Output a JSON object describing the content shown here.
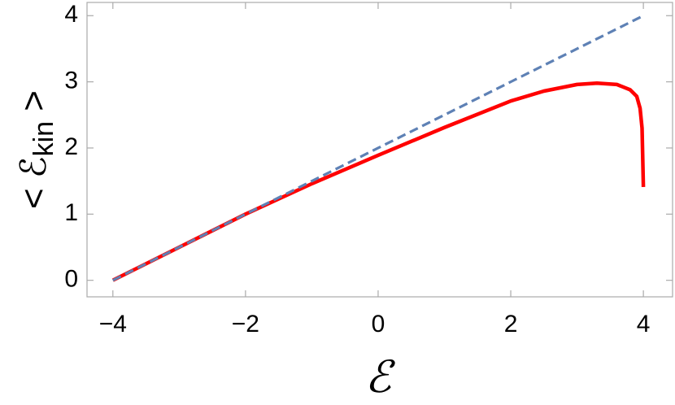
{
  "chart_data": {
    "type": "line",
    "xlabel": "ℰ",
    "ylabel": [
      "< ℰ",
      "kin",
      " >"
    ],
    "x": [
      -4,
      -3,
      -2,
      -1,
      0,
      1,
      2,
      2.5,
      3,
      3.3,
      3.6,
      3.8,
      3.9,
      3.95,
      3.98,
      4
    ],
    "series": [
      {
        "color": "#5e81b5",
        "dashed": true,
        "values": [
          0,
          0.5,
          1,
          1.5,
          2,
          2.5,
          3,
          3.25,
          3.5,
          3.65,
          3.8,
          3.9,
          3.95,
          3.975,
          3.99,
          4
        ]
      },
      {
        "color": "#ff0000",
        "dashed": false,
        "values": [
          0,
          0.5,
          1,
          1.46,
          1.89,
          2.31,
          2.71,
          2.86,
          2.96,
          2.98,
          2.96,
          2.88,
          2.78,
          2.6,
          2.3,
          1.41
        ]
      }
    ],
    "xlim": [
      -4.39,
      4.44
    ],
    "ylim": [
      -0.25,
      4.2
    ],
    "xticks": [
      {
        "value": -4,
        "label": "−4"
      },
      {
        "value": -2,
        "label": "−2"
      },
      0,
      2,
      4
    ],
    "yticks": [
      0,
      1,
      2,
      3,
      4
    ],
    "grid": false
  }
}
